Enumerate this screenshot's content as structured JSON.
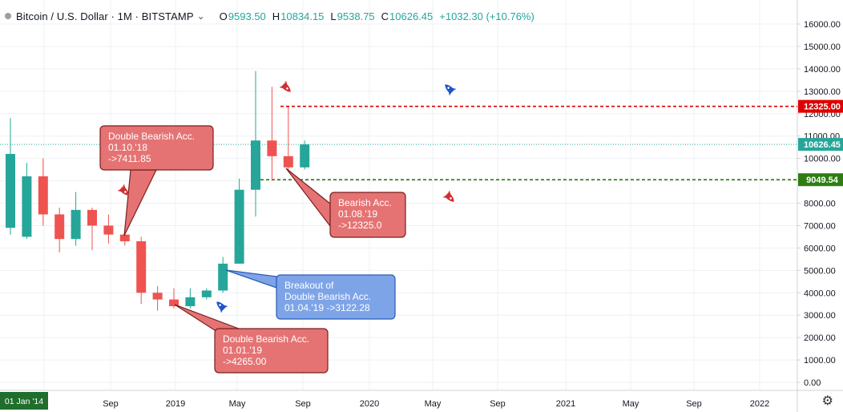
{
  "header": {
    "title": "Bitcoin / U.S. Dollar · 1M · BITSTAMP",
    "chevron_icon": "chevron-down-icon",
    "ohlc": [
      {
        "key": "O",
        "value": "9593.50"
      },
      {
        "key": "H",
        "value": "10834.15"
      },
      {
        "key": "L",
        "value": "9538.75"
      },
      {
        "key": "C",
        "value": "10626.45"
      }
    ],
    "change": "+1032.30 (+10.76%)"
  },
  "colors": {
    "up": "#26a69a",
    "down": "#ef5350",
    "resistance": "#e00000",
    "support": "#2e7d12",
    "current": "#26a69a",
    "bear_callout": "#e57373",
    "bull_callout": "#7ea4e8"
  },
  "chart_data": {
    "type": "candlestick",
    "x_ticks": [
      "Sep",
      "2019",
      "May",
      "Sep",
      "2020",
      "May",
      "Sep",
      "2021",
      "May",
      "Sep",
      "2022"
    ],
    "x_start_label": "01 Jan '14",
    "y_ticks": [
      "16000.00",
      "15000.00",
      "14000.00",
      "13000.00",
      "12000.00",
      "11000.00",
      "10000.00",
      "9000.00",
      "8000.00",
      "7000.00",
      "6000.00",
      "5000.00",
      "4000.00",
      "3000.00",
      "2000.00",
      "1000.00",
      "0.00"
    ],
    "ylim": [
      -200,
      16600
    ],
    "candles": [
      {
        "o": 6900,
        "h": 11800,
        "l": 6600,
        "c": 10200
      },
      {
        "o": 6500,
        "h": 9800,
        "l": 6400,
        "c": 9200
      },
      {
        "o": 9200,
        "h": 10000,
        "l": 7000,
        "c": 7500
      },
      {
        "o": 7500,
        "h": 7800,
        "l": 5800,
        "c": 6400
      },
      {
        "o": 6400,
        "h": 8500,
        "l": 6100,
        "c": 7700
      },
      {
        "o": 7700,
        "h": 7800,
        "l": 5900,
        "c": 7000
      },
      {
        "o": 7000,
        "h": 7500,
        "l": 6200,
        "c": 6600
      },
      {
        "o": 6600,
        "h": 6800,
        "l": 6100,
        "c": 6300
      },
      {
        "o": 6300,
        "h": 6500,
        "l": 3500,
        "c": 4000
      },
      {
        "o": 4000,
        "h": 4300,
        "l": 3200,
        "c": 3700
      },
      {
        "o": 3700,
        "h": 4200,
        "l": 3300,
        "c": 3400
      },
      {
        "o": 3400,
        "h": 4200,
        "l": 3300,
        "c": 3800
      },
      {
        "o": 3800,
        "h": 4200,
        "l": 3700,
        "c": 4100
      },
      {
        "o": 4100,
        "h": 5600,
        "l": 4000,
        "c": 5300
      },
      {
        "o": 5300,
        "h": 9100,
        "l": 5300,
        "c": 8600
      },
      {
        "o": 8600,
        "h": 13900,
        "l": 7400,
        "c": 10800
      },
      {
        "o": 10800,
        "h": 13200,
        "l": 9000,
        "c": 10100
      },
      {
        "o": 10100,
        "h": 12300,
        "l": 9500,
        "c": 9600
      },
      {
        "o": 9600,
        "h": 10800,
        "l": 9500,
        "c": 10626
      }
    ],
    "price_lines": [
      {
        "label": "12325.00",
        "value": 12325,
        "style": "dashed",
        "kind": "resistance"
      },
      {
        "label": "10626.45",
        "value": 10626,
        "style": "dotted",
        "kind": "current"
      },
      {
        "label": "9049.54",
        "value": 9049,
        "style": "dashed",
        "kind": "support"
      }
    ],
    "annotations": [
      {
        "text": "Double Bearish Acc.\n01.10.'18\n->7411.85",
        "kind": "bear",
        "target_candle": 7,
        "target_price": 6500
      },
      {
        "text": "Double Bearish Acc.\n01.01.'19\n->4265.00",
        "kind": "bear",
        "target_candle": 10,
        "target_price": 3500
      },
      {
        "text": "Breakout of\nDouble Bearish Acc.\n01.04.'19 ->3122.28",
        "kind": "bull",
        "target_candle": 13,
        "target_price": 4700
      },
      {
        "text": "Bearish Acc.\n01.08.'19\n->12325.0",
        "kind": "bear",
        "target_candle": 17,
        "target_price": 9300
      }
    ],
    "markers": [
      {
        "icon": "rocket-icon",
        "kind": "bear",
        "candle": 7,
        "price": 8400
      },
      {
        "icon": "rocket-icon",
        "kind": "bull",
        "candle": 13,
        "price": 3500
      },
      {
        "icon": "rocket-icon",
        "kind": "bear",
        "candle": 17,
        "price": 13600
      },
      {
        "icon": "rocket-icon",
        "kind": "bull",
        "candle": 27,
        "price": 13300
      },
      {
        "icon": "rocket-icon",
        "kind": "bear",
        "candle": 27,
        "price": 8300
      }
    ]
  },
  "footer": {
    "settings_icon": "gear-icon"
  }
}
